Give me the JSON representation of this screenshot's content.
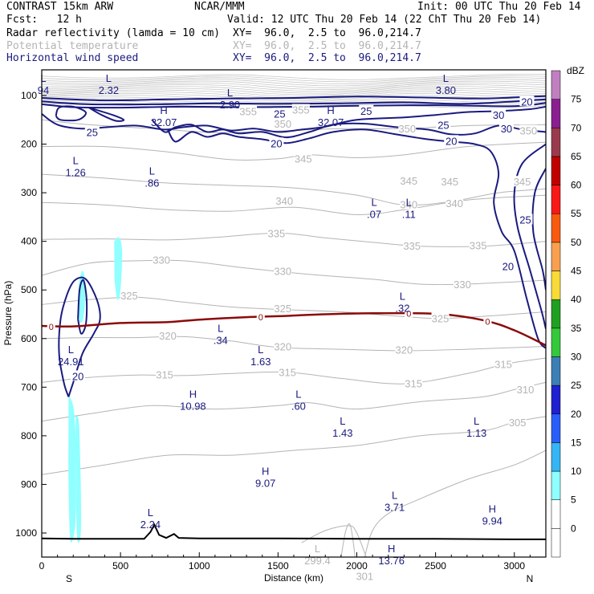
{
  "header": {
    "model": "CONTRAST 15km ARW",
    "org": "NCAR/MMM",
    "init": "Init: 00 UTC Thu 20 Feb 14",
    "fcst": "Fcst:   12 h",
    "valid": "Valid: 12 UTC Thu 20 Feb 14 (22 ChT Thu 20 Feb 14)",
    "fields": [
      {
        "name": "Radar reflectivity (lamda = 10 cm)",
        "xy": "XY=  96.0,  2.5 to  96.0,214.7",
        "color": "#000000"
      },
      {
        "name": "Potential temperature",
        "xy": "XY=  96.0,  2.5 to  96.0,214.7",
        "color": "#b4b4b4"
      },
      {
        "name": "Horizontal wind speed",
        "xy": "XY=  96.0,  2.5 to  96.0,214.7",
        "color": "#1a1a80"
      }
    ]
  },
  "chart_data": {
    "type": "contour",
    "xlabel": "Distance (km)",
    "ylabel": "Pressure (hPa)",
    "xlim": [
      0,
      3200
    ],
    "ylim": [
      1050,
      55
    ],
    "x_ticks": [
      0,
      500,
      1000,
      1500,
      2000,
      2500,
      3000
    ],
    "y_ticks": [
      100,
      200,
      300,
      400,
      500,
      600,
      700,
      800,
      900,
      1000
    ],
    "x_end_labels": {
      "left": "S",
      "right": "N"
    },
    "colorbar": {
      "unit": "dBZ",
      "levels": [
        0,
        5,
        10,
        15,
        20,
        25,
        30,
        35,
        40,
        45,
        50,
        55,
        60,
        65,
        70,
        75
      ],
      "colors": [
        "#ffffff",
        "#90ffff",
        "#35b5f3",
        "#2a5ef8",
        "#2020d0",
        "#3c7fb5",
        "#34c83b",
        "#20a020",
        "#f8da38",
        "#f8a050",
        "#f85a10",
        "#f81818",
        "#c00000",
        "#9a3b4d",
        "#8a2090",
        "#c080c0"
      ]
    },
    "theta_contours": {
      "color": "#b4b4b4",
      "levels": [
        299.4,
        305,
        310,
        315,
        320,
        325,
        330,
        335,
        340,
        345,
        350,
        355
      ],
      "labels": [
        {
          "text": "355",
          "x": 1310,
          "p": 132
        },
        {
          "text": "355",
          "x": 1645,
          "p": 129
        },
        {
          "text": "350",
          "x": 1530,
          "p": 158
        },
        {
          "text": "350",
          "x": 2320,
          "p": 168
        },
        {
          "text": "350",
          "x": 3090,
          "p": 172
        },
        {
          "text": "345",
          "x": 1660,
          "p": 230
        },
        {
          "text": "345",
          "x": 2330,
          "p": 275
        },
        {
          "text": "345",
          "x": 2590,
          "p": 277
        },
        {
          "text": "345",
          "x": 3050,
          "p": 277
        },
        {
          "text": "340",
          "x": 1540,
          "p": 316
        },
        {
          "text": "340",
          "x": 2330,
          "p": 324
        },
        {
          "text": "340",
          "x": 2620,
          "p": 321
        },
        {
          "text": "335",
          "x": 1490,
          "p": 383
        },
        {
          "text": "335",
          "x": 2350,
          "p": 409
        },
        {
          "text": "335",
          "x": 2770,
          "p": 408
        },
        {
          "text": "330",
          "x": 760,
          "p": 438
        },
        {
          "text": "330",
          "x": 1530,
          "p": 461
        },
        {
          "text": "330",
          "x": 2670,
          "p": 488
        },
        {
          "text": "325",
          "x": 555,
          "p": 511
        },
        {
          "text": "325",
          "x": 1530,
          "p": 538
        },
        {
          "text": "325",
          "x": 2530,
          "p": 558
        },
        {
          "text": "320",
          "x": 800,
          "p": 594
        },
        {
          "text": "320",
          "x": 1530,
          "p": 616
        },
        {
          "text": "320",
          "x": 2300,
          "p": 623
        },
        {
          "text": "315",
          "x": 780,
          "p": 674
        },
        {
          "text": "315",
          "x": 1560,
          "p": 669
        },
        {
          "text": "315",
          "x": 2360,
          "p": 692
        },
        {
          "text": "315",
          "x": 2930,
          "p": 652
        },
        {
          "text": "310",
          "x": 3070,
          "p": 704
        },
        {
          "text": "305",
          "x": 3020,
          "p": 772
        }
      ]
    },
    "wind_contours": {
      "color": "#1a1a80",
      "levels": [
        20,
        25,
        30,
        35
      ],
      "labels": [
        {
          "text": "20",
          "x": 1490,
          "p": 198
        },
        {
          "text": "20",
          "x": 2600,
          "p": 193
        },
        {
          "text": "20",
          "x": 2960,
          "p": 451
        },
        {
          "text": "20",
          "x": 230,
          "p": 677
        },
        {
          "text": "20",
          "x": 3080,
          "p": 112
        },
        {
          "text": "25",
          "x": 320,
          "p": 175
        },
        {
          "text": "25",
          "x": 1510,
          "p": 137
        },
        {
          "text": "25",
          "x": 2060,
          "p": 131
        },
        {
          "text": "25",
          "x": 2550,
          "p": 160
        },
        {
          "text": "25",
          "x": 3070,
          "p": 355
        },
        {
          "text": "30",
          "x": 2900,
          "p": 140
        },
        {
          "text": "30",
          "x": 2950,
          "p": 168
        }
      ]
    },
    "zero_line": {
      "color": "#8b0a0a",
      "points": [
        [
          0,
          574
        ],
        [
          200,
          575
        ],
        [
          500,
          568
        ],
        [
          800,
          566
        ],
        [
          1000,
          561
        ],
        [
          1300,
          556
        ],
        [
          1500,
          554
        ],
        [
          1800,
          550
        ],
        [
          2100,
          548
        ],
        [
          2500,
          549
        ],
        [
          2800,
          562
        ],
        [
          3000,
          583
        ],
        [
          3200,
          614
        ]
      ],
      "labels": [
        {
          "text": "0",
          "x": 60,
          "p": 576
        },
        {
          "text": "0",
          "x": 1390,
          "p": 556
        },
        {
          "text": "0",
          "x": 2330,
          "p": 548
        },
        {
          "text": "0",
          "x": 2830,
          "p": 565
        }
      ]
    },
    "terrain": {
      "color": "#000000",
      "points": [
        [
          0,
          1011
        ],
        [
          200,
          1012
        ],
        [
          400,
          1012
        ],
        [
          650,
          1012
        ],
        [
          690,
          998
        ],
        [
          715,
          983
        ],
        [
          745,
          1004
        ],
        [
          790,
          1010
        ],
        [
          840,
          1002
        ],
        [
          870,
          1010
        ],
        [
          1000,
          1011
        ],
        [
          1500,
          1011
        ],
        [
          2000,
          1012
        ],
        [
          2500,
          1012
        ],
        [
          3000,
          1013
        ],
        [
          3200,
          1013
        ]
      ]
    },
    "extrema_labels": [
      {
        "type": "L",
        "value": "94",
        "x": 10,
        "p": 72
      },
      {
        "type": "L",
        "value": "2.32",
        "x": 425,
        "p": 72
      },
      {
        "type": "L",
        "value": "3.80",
        "x": 2565,
        "p": 72
      },
      {
        "type": "L",
        "value": "2.90",
        "x": 1195,
        "p": 102
      },
      {
        "type": "H",
        "value": "32.07",
        "x": 775,
        "p": 138
      },
      {
        "type": "H",
        "value": "32.07",
        "x": 1835,
        "p": 138
      },
      {
        "type": "L",
        "value": "1.26",
        "x": 215,
        "p": 241
      },
      {
        "type": "L",
        "value": ".86",
        "x": 700,
        "p": 263
      },
      {
        "type": "L",
        "value": ".07",
        "x": 2110,
        "p": 327
      },
      {
        "type": "L",
        "value": ".11",
        "x": 2330,
        "p": 327
      },
      {
        "type": "L",
        "value": ".32",
        "x": 2290,
        "p": 520
      },
      {
        "type": "L",
        "value": ".34",
        "x": 1135,
        "p": 586
      },
      {
        "type": "L",
        "value": "24.91",
        "x": 185,
        "p": 630
      },
      {
        "type": "L",
        "value": "1.63",
        "x": 1390,
        "p": 630
      },
      {
        "type": "H",
        "value": "10.98",
        "x": 960,
        "p": 722
      },
      {
        "type": "L",
        "value": ".60",
        "x": 1630,
        "p": 722
      },
      {
        "type": "L",
        "value": "1.43",
        "x": 1910,
        "p": 777
      },
      {
        "type": "L",
        "value": "1.13",
        "x": 2760,
        "p": 777
      },
      {
        "type": "H",
        "value": "9.07",
        "x": 1420,
        "p": 880
      },
      {
        "type": "L",
        "value": "3.71",
        "x": 2240,
        "p": 930
      },
      {
        "type": "H",
        "value": "9.94",
        "x": 2860,
        "p": 958
      },
      {
        "type": "L",
        "value": "2.24",
        "x": 690,
        "p": 965
      },
      {
        "type": "H",
        "value": "13.76",
        "x": 2220,
        "p": 1040
      }
    ],
    "theta_extrema": [
      {
        "type": "L",
        "value": "299.4",
        "x": 1750,
        "p": 1040
      },
      {
        "type": "",
        "value": "301",
        "x": 2050,
        "p": 1072
      }
    ]
  }
}
